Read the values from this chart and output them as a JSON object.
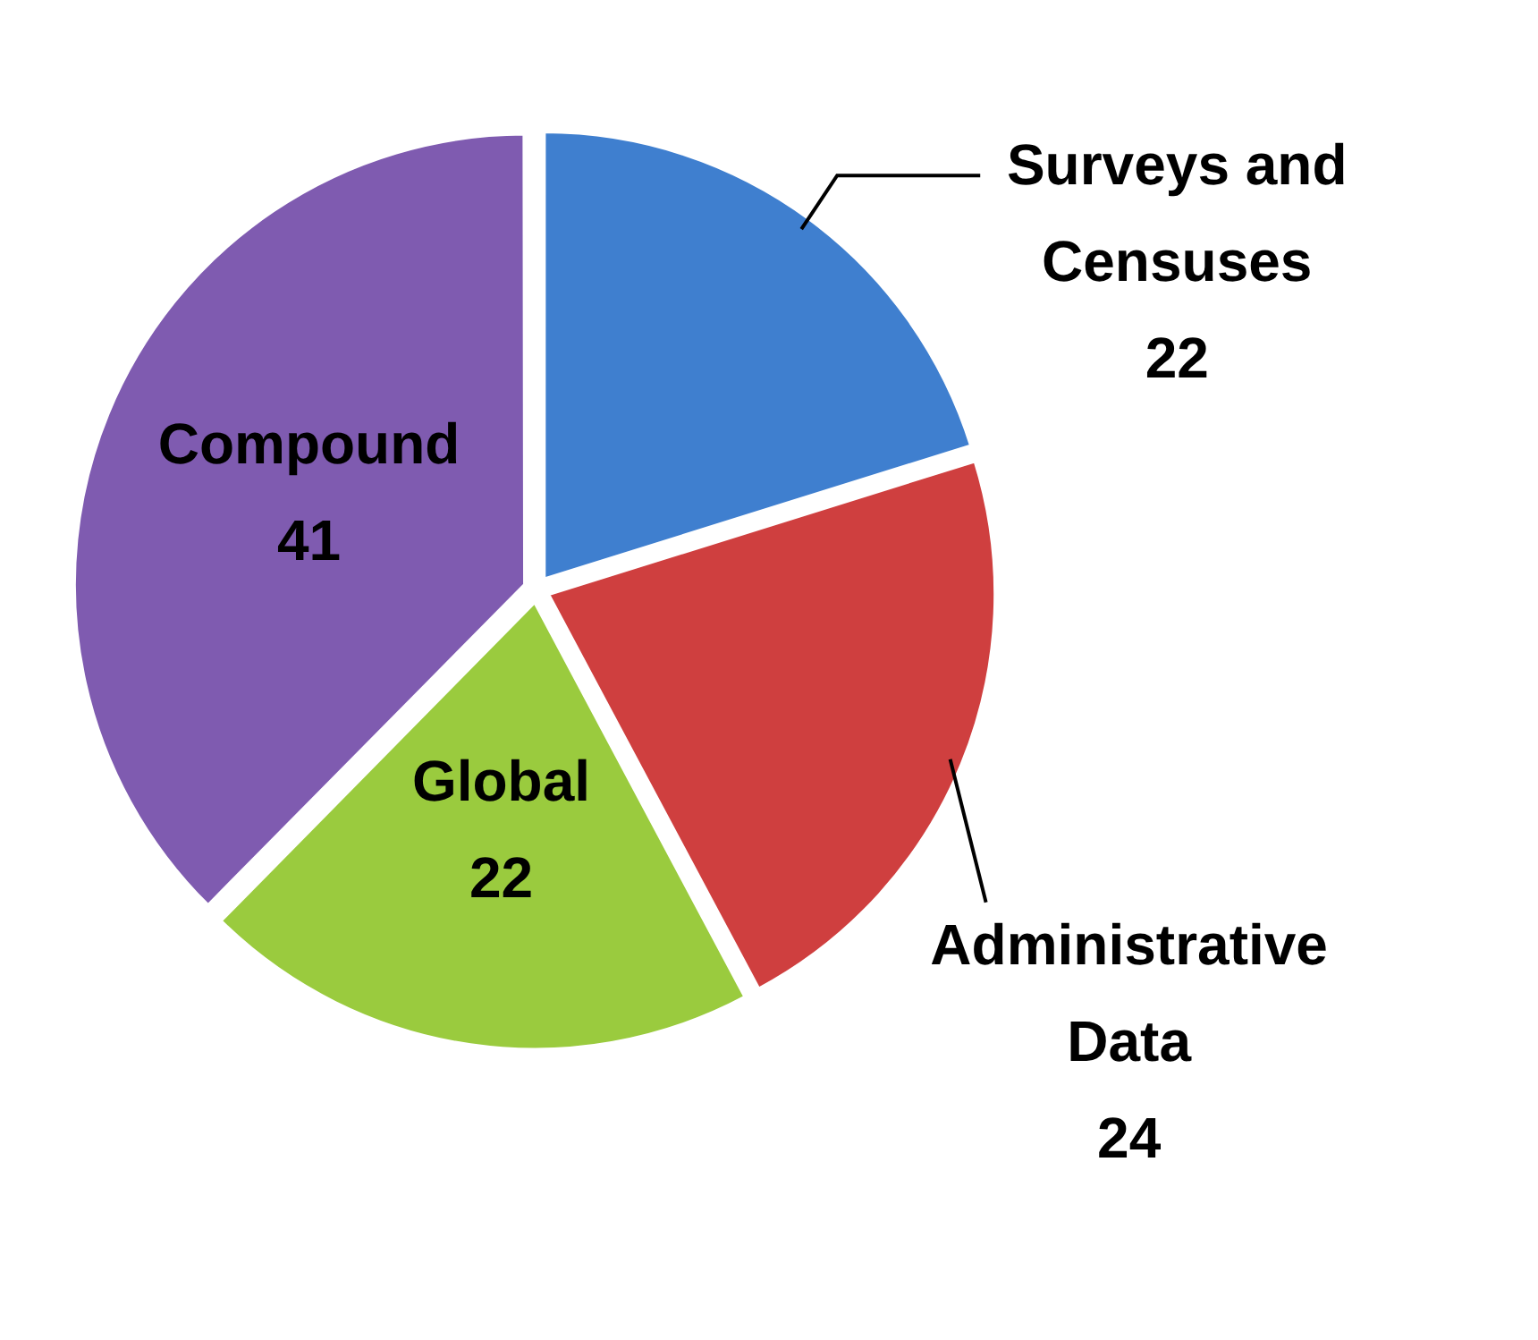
{
  "chart_data": {
    "type": "pie",
    "categories": [
      "Surveys and Censuses",
      "Administrative Data",
      "Global",
      "Compound"
    ],
    "values": [
      22,
      24,
      22,
      41
    ],
    "colors": [
      "#3f7fcf",
      "#cf3f3f",
      "#9acb3e",
      "#7f5bb0"
    ],
    "data_labels": true,
    "legend": false
  }
}
